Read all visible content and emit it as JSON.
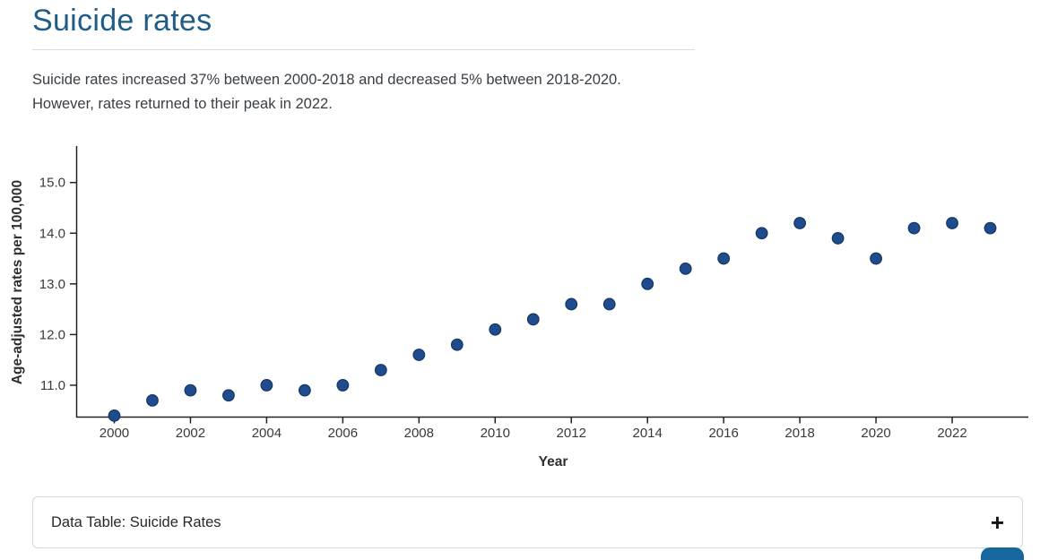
{
  "header": {
    "title": "Suicide rates"
  },
  "description": {
    "line1": "Suicide rates increased 37% between 2000-2018 and decreased 5% between 2018-2020.",
    "line2": "However, rates returned to their peak in 2022."
  },
  "chart_data": {
    "type": "scatter",
    "title": "",
    "xlabel": "Year",
    "ylabel": "Age-adjusted rates per 100,000",
    "x": [
      2000,
      2001,
      2002,
      2003,
      2004,
      2005,
      2006,
      2007,
      2008,
      2009,
      2010,
      2011,
      2012,
      2013,
      2014,
      2015,
      2016,
      2017,
      2018,
      2019,
      2020,
      2021,
      2022,
      2023
    ],
    "y": [
      10.4,
      10.7,
      10.9,
      10.8,
      11.0,
      10.9,
      11.0,
      11.3,
      11.6,
      11.8,
      12.1,
      12.3,
      12.6,
      12.6,
      13.0,
      13.3,
      13.5,
      14.0,
      14.2,
      13.9,
      13.5,
      14.1,
      14.2,
      14.1
    ],
    "x_ticks": [
      2000,
      2002,
      2004,
      2006,
      2008,
      2010,
      2012,
      2014,
      2016,
      2018,
      2020,
      2022
    ],
    "y_ticks": [
      11.0,
      12.0,
      13.0,
      14.0,
      15.0
    ],
    "xlim": [
      1999,
      2024
    ],
    "ylim": [
      10.38,
      15.72
    ],
    "grid": false,
    "legend": false,
    "marker": {
      "fill": "#1e4c8f",
      "stroke": "#15365e",
      "radius": 6.3
    }
  },
  "data_table_panel": {
    "label": "Data Table: Suicide Rates",
    "toggle_icon": "+"
  },
  "colors": {
    "title": "#1f5c88",
    "body_text": "#393e44",
    "axis": "#222222",
    "tick_label": "#3a3a3a",
    "divider": "#dcdcdc",
    "panel_border": "#d6d6d6",
    "bottom_button": "#17679f"
  }
}
